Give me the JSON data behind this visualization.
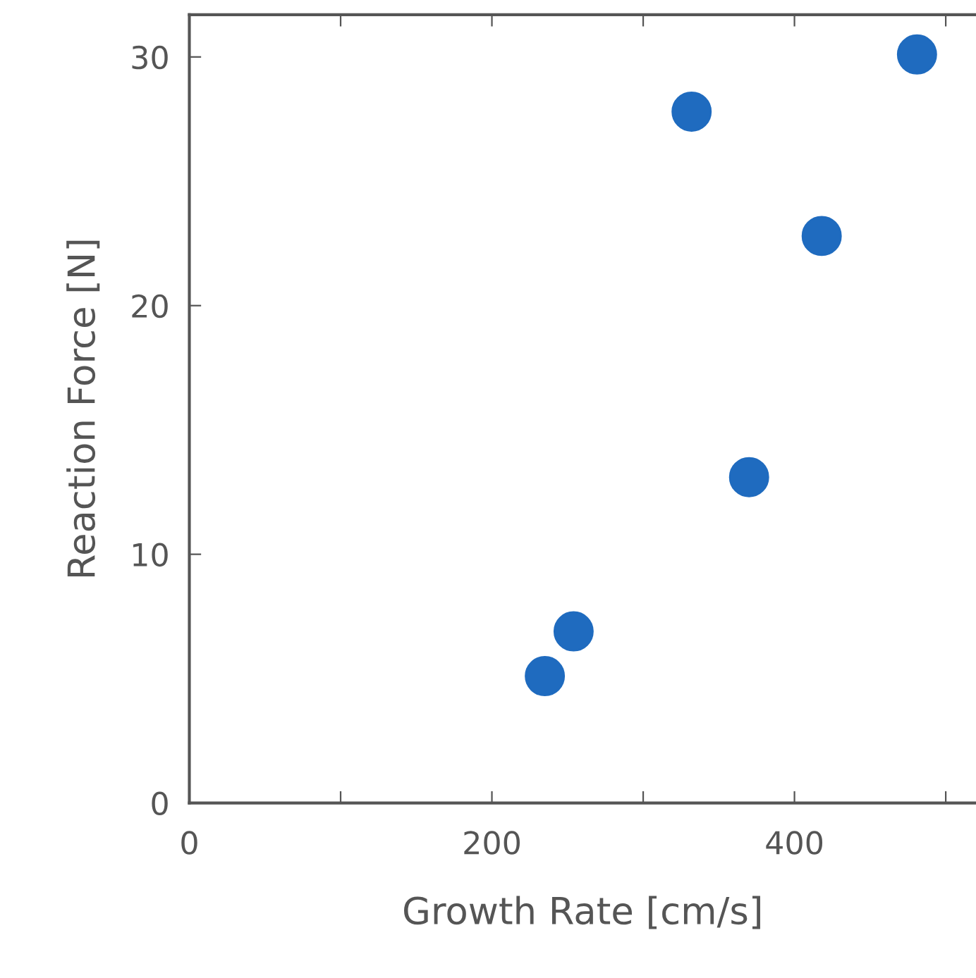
{
  "chart_data": {
    "type": "scatter",
    "xlabel": "Growth Rate [cm/s]",
    "ylabel": "Reaction Force [N]",
    "x": [
      235,
      254,
      332,
      370,
      418,
      481
    ],
    "series": [
      {
        "color": "#1f6bbf",
        "values": [
          5.1,
          6.9,
          27.8,
          13.1,
          22.8,
          30.1
        ]
      }
    ],
    "xlim": [
      0,
      520
    ],
    "ylim": [
      0,
      31.7
    ],
    "xticks": [
      0,
      {
        "value": 100,
        "label": null
      },
      200,
      {
        "value": 300,
        "label": null
      },
      400,
      {
        "value": 500,
        "label": null
      }
    ],
    "yticks": [
      0,
      10,
      20,
      30
    ],
    "marker": "circle",
    "grid": false,
    "legend": false
  }
}
